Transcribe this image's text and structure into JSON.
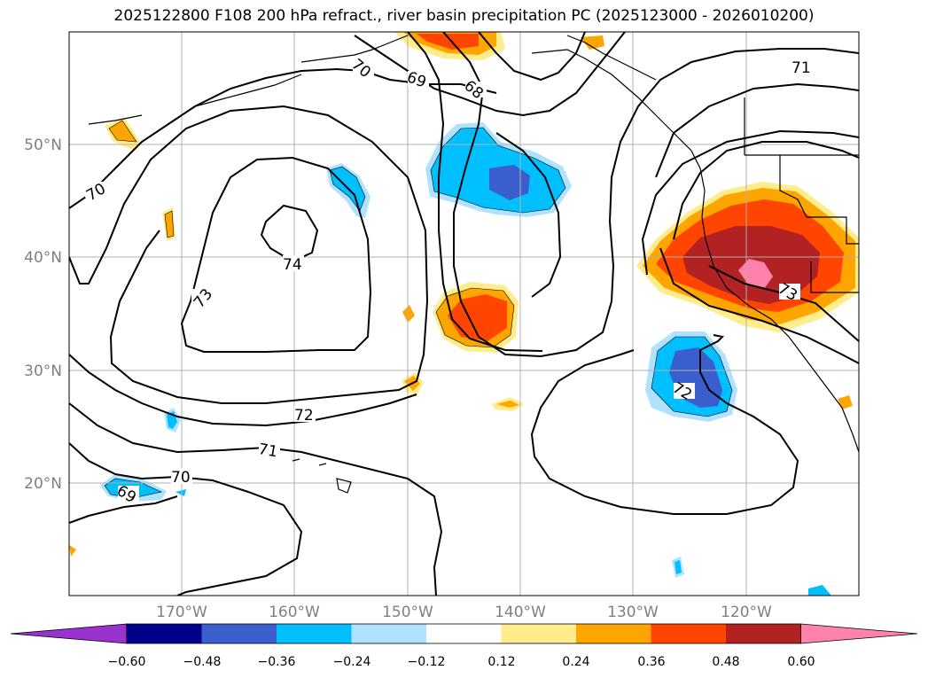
{
  "title": "2025122800 F108 200 hPa refract., river basin precipitation PC (2025123000 - 2026010200)",
  "lat_labels": [
    "50°N",
    "40°N",
    "30°N",
    "20°N"
  ],
  "lon_labels": [
    "170°W",
    "160°W",
    "150°W",
    "140°W",
    "130°W",
    "120°W"
  ],
  "colorbar": {
    "labels": [
      "−0.60",
      "−0.48",
      "−0.36",
      "−0.24",
      "−0.12",
      "0.12",
      "0.24",
      "0.36",
      "0.48",
      "0.60"
    ],
    "colors": [
      "#9a32cd",
      "#00008b",
      "#3a5fcd",
      "#00bfff",
      "#b0e2ff",
      "#ffffff",
      "#ffec8b",
      "#ffa500",
      "#ff4500",
      "#b22222",
      "#ff82ab"
    ]
  },
  "contour_labels": [
    "70",
    "69",
    "68",
    "71",
    "70",
    "74",
    "73",
    "73",
    "72",
    "72",
    "71",
    "70",
    "69"
  ]
}
